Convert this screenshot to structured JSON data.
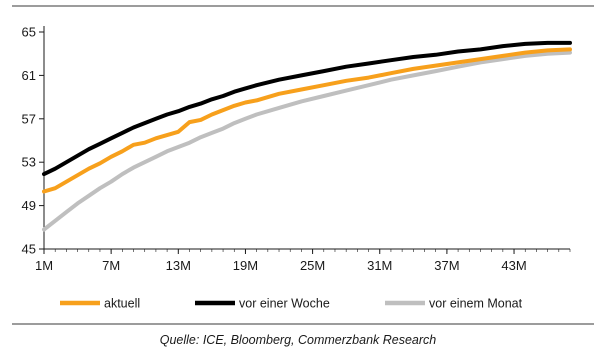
{
  "chart_data": {
    "type": "line",
    "title": "",
    "xlabel": "",
    "ylabel": "",
    "ylim": [
      45,
      65
    ],
    "xlim": [
      1,
      48
    ],
    "grid": false,
    "legend_position": "bottom",
    "y_ticks": [
      "45",
      "49",
      "53",
      "57",
      "61",
      "65"
    ],
    "x_ticks": [
      "1M",
      "7M",
      "13M",
      "19M",
      "25M",
      "31M",
      "37M",
      "43M"
    ],
    "series": [
      {
        "name": "aktuell",
        "color": "#f7a01c",
        "x": [
          1,
          2,
          3,
          4,
          5,
          6,
          7,
          8,
          9,
          10,
          11,
          12,
          13,
          14,
          15,
          16,
          17,
          18,
          19,
          20,
          22,
          24,
          26,
          28,
          30,
          32,
          34,
          36,
          38,
          40,
          42,
          44,
          46,
          48
        ],
        "y": [
          50.3,
          50.6,
          51.2,
          51.8,
          52.4,
          52.9,
          53.5,
          54.0,
          54.6,
          54.8,
          55.2,
          55.5,
          55.8,
          56.7,
          56.9,
          57.4,
          57.8,
          58.2,
          58.5,
          58.7,
          59.3,
          59.7,
          60.1,
          60.5,
          60.8,
          61.2,
          61.6,
          61.9,
          62.2,
          62.5,
          62.8,
          63.1,
          63.3,
          63.4
        ]
      },
      {
        "name": "vor einer Woche",
        "color": "#000000",
        "x": [
          1,
          2,
          3,
          4,
          5,
          6,
          7,
          8,
          9,
          10,
          11,
          12,
          13,
          14,
          15,
          16,
          17,
          18,
          19,
          20,
          22,
          24,
          26,
          28,
          30,
          32,
          34,
          36,
          38,
          40,
          42,
          44,
          46,
          48
        ],
        "y": [
          51.9,
          52.4,
          53.0,
          53.6,
          54.2,
          54.7,
          55.2,
          55.7,
          56.2,
          56.6,
          57.0,
          57.4,
          57.7,
          58.1,
          58.4,
          58.8,
          59.1,
          59.5,
          59.8,
          60.1,
          60.6,
          61.0,
          61.4,
          61.8,
          62.1,
          62.4,
          62.7,
          62.9,
          63.2,
          63.4,
          63.7,
          63.9,
          64.0,
          64.0
        ]
      },
      {
        "name": "vor einem Monat",
        "color": "#bfbfbf",
        "x": [
          1,
          2,
          3,
          4,
          5,
          6,
          7,
          8,
          9,
          10,
          11,
          12,
          13,
          14,
          15,
          16,
          17,
          18,
          19,
          20,
          22,
          24,
          26,
          28,
          30,
          32,
          34,
          36,
          38,
          40,
          42,
          44,
          46,
          48
        ],
        "y": [
          46.8,
          47.6,
          48.4,
          49.2,
          49.9,
          50.6,
          51.2,
          51.9,
          52.5,
          53.0,
          53.5,
          54.0,
          54.4,
          54.8,
          55.3,
          55.7,
          56.1,
          56.6,
          57.0,
          57.4,
          58.0,
          58.6,
          59.1,
          59.6,
          60.1,
          60.6,
          61.0,
          61.4,
          61.8,
          62.2,
          62.5,
          62.8,
          63.0,
          63.1
        ]
      }
    ]
  },
  "source": "Quelle: ICE, Bloomberg, Commerzbank Research",
  "colors": {
    "frame": "#999999",
    "axis": "#1a1a1a"
  }
}
